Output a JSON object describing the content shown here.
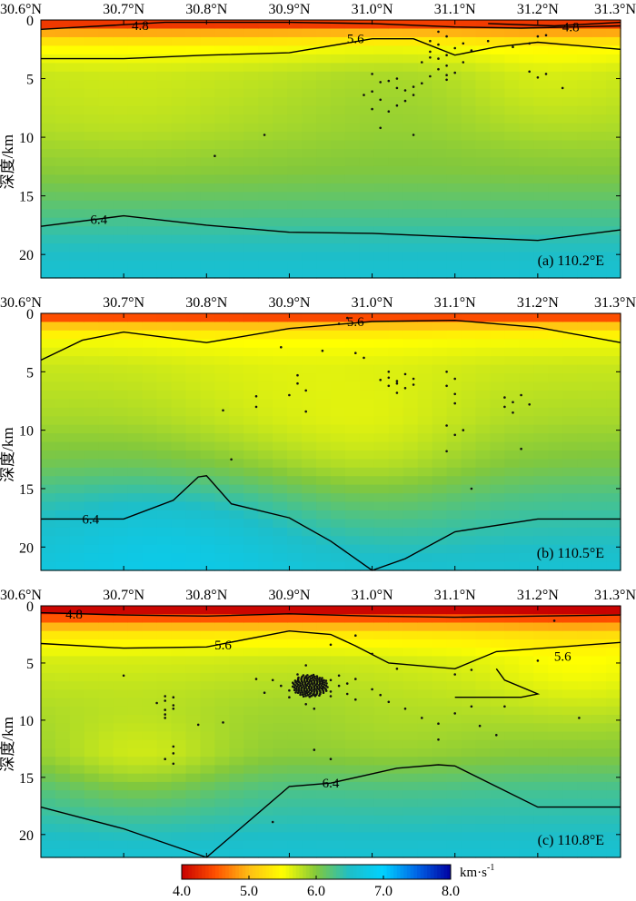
{
  "chart_data": [
    {
      "type": "heatmap",
      "label": "(a) 110.2°E",
      "xlim": [
        30.6,
        31.3
      ],
      "ylim": [
        0,
        22
      ],
      "xticks": [
        "30.6°N",
        "30.7°N",
        "30.8°N",
        "30.9°N",
        "31.0°N",
        "31.1°N",
        "31.2°N",
        "31.3°N"
      ],
      "yticks": [
        "0",
        "5",
        "10",
        "15",
        "20"
      ],
      "ylabel": "深度/km",
      "base_profile": [
        [
          0,
          4.15
        ],
        [
          0.6,
          4.5
        ],
        [
          1.3,
          5.1
        ],
        [
          2.4,
          5.5
        ],
        [
          4.5,
          5.75
        ],
        [
          9,
          5.85
        ],
        [
          13,
          6.0
        ],
        [
          16.5,
          6.25
        ],
        [
          19,
          6.45
        ],
        [
          22,
          6.6
        ]
      ],
      "contours": [
        {
          "label": "4.8",
          "points": [
            [
              30.6,
              0.8
            ],
            [
              30.75,
              0.2
            ],
            [
              30.9,
              0.2
            ],
            [
              31.0,
              0.3
            ],
            [
              31.1,
              0.6
            ],
            [
              31.18,
              0.7
            ],
            [
              31.3,
              0.5
            ]
          ],
          "label_at": [
            30.72,
            0.45
          ]
        },
        {
          "label": "4.8",
          "points": [
            [
              31.14,
              0.3
            ],
            [
              31.22,
              0.5
            ],
            [
              31.3,
              0.2
            ]
          ],
          "label_at": [
            31.24,
            0.6
          ]
        },
        {
          "label": "5.6",
          "points": [
            [
              30.6,
              3.3
            ],
            [
              30.7,
              3.3
            ],
            [
              30.8,
              3.0
            ],
            [
              30.9,
              2.8
            ],
            [
              31.0,
              1.6
            ],
            [
              31.05,
              1.6
            ],
            [
              31.1,
              3.0
            ],
            [
              31.15,
              2.3
            ],
            [
              31.2,
              1.9
            ],
            [
              31.3,
              2.5
            ]
          ],
          "label_at": [
            30.98,
            1.6
          ]
        },
        {
          "label": "6.4",
          "points": [
            [
              30.6,
              17.6
            ],
            [
              30.7,
              16.7
            ],
            [
              30.8,
              17.5
            ],
            [
              30.9,
              18.1
            ],
            [
              31.0,
              18.2
            ],
            [
              31.1,
              18.5
            ],
            [
              31.2,
              18.8
            ],
            [
              31.3,
              17.9
            ]
          ],
          "label_at": [
            30.67,
            17.0
          ]
        }
      ],
      "quakes": [
        [
          31.08,
          1.0
        ],
        [
          31.09,
          1.4
        ],
        [
          31.07,
          1.8
        ],
        [
          31.08,
          2.1
        ],
        [
          31.1,
          2.4
        ],
        [
          31.07,
          2.7
        ],
        [
          31.09,
          3.0
        ],
        [
          31.08,
          3.3
        ],
        [
          31.06,
          3.6
        ],
        [
          31.09,
          3.9
        ],
        [
          31.08,
          4.2
        ],
        [
          31.1,
          4.5
        ],
        [
          31.07,
          4.8
        ],
        [
          31.09,
          5.1
        ],
        [
          31.06,
          5.4
        ],
        [
          31.05,
          5.7
        ],
        [
          31.04,
          6.0
        ],
        [
          31.05,
          6.4
        ],
        [
          31.04,
          6.9
        ],
        [
          31.03,
          7.3
        ],
        [
          31.02,
          7.8
        ],
        [
          31.0,
          4.6
        ],
        [
          31.01,
          5.3
        ],
        [
          31.0,
          6.1
        ],
        [
          31.01,
          6.8
        ],
        [
          31.0,
          7.6
        ],
        [
          30.99,
          6.4
        ],
        [
          31.02,
          5.2
        ],
        [
          31.03,
          5.8
        ],
        [
          31.11,
          2.0
        ],
        [
          31.12,
          2.6
        ],
        [
          31.14,
          1.8
        ],
        [
          31.17,
          2.3
        ],
        [
          31.19,
          2.0
        ],
        [
          31.2,
          1.4
        ],
        [
          31.21,
          1.3
        ],
        [
          31.19,
          4.4
        ],
        [
          31.2,
          4.9
        ],
        [
          31.21,
          4.6
        ],
        [
          31.23,
          5.8
        ],
        [
          31.05,
          9.8
        ],
        [
          31.01,
          9.2
        ],
        [
          30.87,
          9.8
        ],
        [
          30.81,
          11.6
        ],
        [
          31.07,
          3.2
        ],
        [
          31.11,
          3.6
        ],
        [
          31.09,
          4.7
        ],
        [
          31.03,
          5.0
        ]
      ],
      "legend": ""
    },
    {
      "type": "heatmap",
      "label": "(b) 110.5°E",
      "xlim": [
        30.6,
        31.3
      ],
      "ylim": [
        0,
        22
      ],
      "xticks": [
        "30.6°N",
        "30.7°N",
        "30.8°N",
        "30.9°N",
        "31.0°N",
        "31.1°N",
        "31.2°N",
        "31.3°N"
      ],
      "yticks": [
        "0",
        "5",
        "10",
        "15",
        "20"
      ],
      "ylabel": "深度/km",
      "base_profile": [
        [
          0,
          4.15
        ],
        [
          0.6,
          4.7
        ],
        [
          1.4,
          5.3
        ],
        [
          2.5,
          5.55
        ],
        [
          4.5,
          5.72
        ],
        [
          9,
          5.85
        ],
        [
          13,
          6.05
        ],
        [
          16,
          6.3
        ],
        [
          19,
          6.45
        ],
        [
          22,
          6.6
        ]
      ],
      "contours": [
        {
          "label": "5.6",
          "points": [
            [
              30.6,
              4.0
            ],
            [
              30.65,
              2.3
            ],
            [
              30.7,
              1.6
            ],
            [
              30.8,
              2.5
            ],
            [
              30.9,
              1.3
            ],
            [
              31.0,
              0.7
            ],
            [
              31.1,
              0.6
            ],
            [
              31.2,
              1.2
            ],
            [
              31.3,
              2.5
            ]
          ],
          "label_at": [
            30.98,
            0.7
          ]
        },
        {
          "label": "6.4",
          "points": [
            [
              30.6,
              17.6
            ],
            [
              30.7,
              17.6
            ],
            [
              30.76,
              16.0
            ],
            [
              30.79,
              14.0
            ],
            [
              30.8,
              13.9
            ],
            [
              30.83,
              16.3
            ],
            [
              30.9,
              17.5
            ],
            [
              30.95,
              19.5
            ],
            [
              31.0,
              22.0
            ],
            [
              31.04,
              21.0
            ],
            [
              31.1,
              18.7
            ],
            [
              31.2,
              17.6
            ],
            [
              31.3,
              17.6
            ]
          ],
          "label_at": [
            30.66,
            17.6
          ]
        }
      ],
      "quakes": [
        [
          30.97,
          0.4
        ],
        [
          30.89,
          2.9
        ],
        [
          30.94,
          3.2
        ],
        [
          30.98,
          3.4
        ],
        [
          30.99,
          3.8
        ],
        [
          31.02,
          5.0
        ],
        [
          31.02,
          5.5
        ],
        [
          31.03,
          5.8
        ],
        [
          31.02,
          6.2
        ],
        [
          31.04,
          5.2
        ],
        [
          31.05,
          5.6
        ],
        [
          31.04,
          6.4
        ],
        [
          31.03,
          6.8
        ],
        [
          31.05,
          6.1
        ],
        [
          31.01,
          5.7
        ],
        [
          31.03,
          6.0
        ],
        [
          31.09,
          5.0
        ],
        [
          31.1,
          5.6
        ],
        [
          31.09,
          6.2
        ],
        [
          31.1,
          6.9
        ],
        [
          31.1,
          7.7
        ],
        [
          31.09,
          9.6
        ],
        [
          31.1,
          10.4
        ],
        [
          31.11,
          10.0
        ],
        [
          31.09,
          11.8
        ],
        [
          31.16,
          7.2
        ],
        [
          31.17,
          7.6
        ],
        [
          31.16,
          8.0
        ],
        [
          31.17,
          8.5
        ],
        [
          31.18,
          7.0
        ],
        [
          31.19,
          7.8
        ],
        [
          31.18,
          11.6
        ],
        [
          30.91,
          5.3
        ],
        [
          30.91,
          6.0
        ],
        [
          30.9,
          7.0
        ],
        [
          30.92,
          8.4
        ],
        [
          30.92,
          6.6
        ],
        [
          30.86,
          7.1
        ],
        [
          30.86,
          8.0
        ],
        [
          30.82,
          8.3
        ],
        [
          30.83,
          12.5
        ],
        [
          31.12,
          15.0
        ],
        [
          30.96,
          0.9
        ]
      ],
      "legend": ""
    },
    {
      "type": "heatmap",
      "label": "(c) 110.8°E",
      "xlim": [
        30.6,
        31.3
      ],
      "ylim": [
        0,
        22
      ],
      "xticks": [
        "30.6°N",
        "30.7°N",
        "30.8°N",
        "30.9°N",
        "31.0°N",
        "31.1°N",
        "31.2°N",
        "31.3°N"
      ],
      "yticks": [
        "0",
        "5",
        "10",
        "15",
        "20"
      ],
      "ylabel": "深度/km",
      "base_profile": [
        [
          0,
          4.0
        ],
        [
          0.5,
          4.05
        ],
        [
          1.2,
          4.6
        ],
        [
          2.4,
          5.3
        ],
        [
          4.5,
          5.65
        ],
        [
          9,
          5.85
        ],
        [
          13,
          6.0
        ],
        [
          16,
          6.3
        ],
        [
          19,
          6.45
        ],
        [
          22,
          6.6
        ]
      ],
      "contours": [
        {
          "label": "4.8",
          "points": [
            [
              30.6,
              0.6
            ],
            [
              30.7,
              0.8
            ],
            [
              30.8,
              0.9
            ],
            [
              30.9,
              0.7
            ],
            [
              31.0,
              0.9
            ],
            [
              31.1,
              1.0
            ],
            [
              31.2,
              0.9
            ],
            [
              31.3,
              0.8
            ]
          ],
          "label_at": [
            30.64,
            0.7
          ]
        },
        {
          "label": "5.6",
          "points": [
            [
              30.6,
              3.3
            ],
            [
              30.7,
              3.7
            ],
            [
              30.8,
              3.6
            ],
            [
              30.9,
              2.2
            ],
            [
              30.95,
              2.5
            ],
            [
              30.98,
              3.5
            ],
            [
              31.02,
              5.0
            ],
            [
              31.1,
              5.5
            ],
            [
              31.15,
              4.0
            ],
            [
              31.3,
              3.2
            ]
          ],
          "label_at": [
            30.82,
            3.4
          ]
        },
        {
          "label": "5.6",
          "points": [
            [
              31.1,
              8.0
            ],
            [
              31.18,
              8.0
            ],
            [
              31.2,
              7.7
            ],
            [
              31.16,
              6.5
            ],
            [
              31.15,
              5.5
            ]
          ],
          "label_at": [
            31.23,
            4.4
          ]
        },
        {
          "label": "6.4",
          "points": [
            [
              30.6,
              17.6
            ],
            [
              30.7,
              19.5
            ],
            [
              30.8,
              22.0
            ],
            [
              30.9,
              15.8
            ],
            [
              30.95,
              15.5
            ],
            [
              31.03,
              14.2
            ],
            [
              31.08,
              13.9
            ],
            [
              31.1,
              14.0
            ],
            [
              31.2,
              17.6
            ],
            [
              31.3,
              17.6
            ]
          ],
          "label_at": [
            30.95,
            15.5
          ]
        }
      ],
      "quakes": [
        [
          30.75,
          7.9
        ],
        [
          30.75,
          8.3
        ],
        [
          30.76,
          8.7
        ],
        [
          30.75,
          9.1
        ],
        [
          30.75,
          9.5
        ],
        [
          30.76,
          8.0
        ],
        [
          30.76,
          9.0
        ],
        [
          30.74,
          8.5
        ],
        [
          30.75,
          9.8
        ],
        [
          30.76,
          12.3
        ],
        [
          30.76,
          12.9
        ],
        [
          30.75,
          13.4
        ],
        [
          30.76,
          13.8
        ],
        [
          30.7,
          6.1
        ],
        [
          30.88,
          6.5
        ],
        [
          30.89,
          7.0
        ],
        [
          30.9,
          7.4
        ],
        [
          30.91,
          6.6
        ],
        [
          30.92,
          6.9
        ],
        [
          30.92,
          7.5
        ],
        [
          30.93,
          6.2
        ],
        [
          30.93,
          7.8
        ],
        [
          30.94,
          6.8
        ],
        [
          30.94,
          7.2
        ],
        [
          30.95,
          6.5
        ],
        [
          30.95,
          7.5
        ],
        [
          30.96,
          7.0
        ],
        [
          30.96,
          6.1
        ],
        [
          30.97,
          7.7
        ],
        [
          30.98,
          8.2
        ],
        [
          30.9,
          8.0
        ],
        [
          30.92,
          8.6
        ],
        [
          30.91,
          6.0
        ],
        [
          30.92,
          6.3
        ],
        [
          30.93,
          7.3
        ],
        [
          30.94,
          6.6
        ],
        [
          30.95,
          7.9
        ],
        [
          30.93,
          9.0
        ],
        [
          30.97,
          6.8
        ],
        [
          30.98,
          6.4
        ],
        [
          31.0,
          7.3
        ],
        [
          31.01,
          7.8
        ],
        [
          31.02,
          8.4
        ],
        [
          31.04,
          9.0
        ],
        [
          31.06,
          9.8
        ],
        [
          31.08,
          10.3
        ],
        [
          31.1,
          9.4
        ],
        [
          31.12,
          8.8
        ],
        [
          30.95,
          3.4
        ],
        [
          30.98,
          2.6
        ],
        [
          31.0,
          4.2
        ],
        [
          31.03,
          5.5
        ],
        [
          30.86,
          6.4
        ],
        [
          30.87,
          7.6
        ],
        [
          31.13,
          10.5
        ],
        [
          31.15,
          11.3
        ],
        [
          31.16,
          8.8
        ],
        [
          31.08,
          11.7
        ],
        [
          31.1,
          6.0
        ],
        [
          31.12,
          5.6
        ],
        [
          31.2,
          4.8
        ],
        [
          31.22,
          1.3
        ],
        [
          31.25,
          9.8
        ],
        [
          30.79,
          10.4
        ],
        [
          30.82,
          10.2
        ],
        [
          30.93,
          12.6
        ],
        [
          30.95,
          13.4
        ],
        [
          30.88,
          18.9
        ],
        [
          30.92,
          5.2
        ]
      ],
      "legend": ""
    }
  ],
  "colorbar": {
    "ticks": [
      "4.0",
      "5.0",
      "6.0",
      "7.0",
      "8.0"
    ],
    "range": [
      4.0,
      8.0
    ],
    "unit": "km·s",
    "unit_sup": "-1"
  }
}
